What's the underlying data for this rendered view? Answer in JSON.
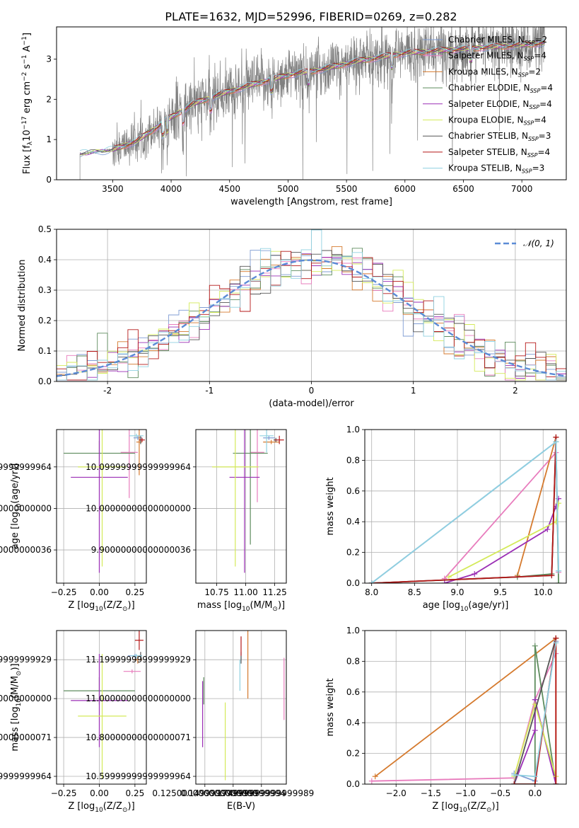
{
  "figure": {
    "title": "PLATE=1632, MJD=52996, FIBERID=0269, z=0.282"
  },
  "models": [
    {
      "label": "Chabrier MILES, N",
      "n": "=2",
      "color": "#7f9cd3"
    },
    {
      "label": "Salpeter MILES, N",
      "n": "=4",
      "color": "#e87cbd"
    },
    {
      "label": "Kroupa MILES, N",
      "n": "=2",
      "color": "#d57a2e"
    },
    {
      "label": "Chabrier ELODIE, N",
      "n": "=4",
      "color": "#5e8c5e"
    },
    {
      "label": "Salpeter ELODIE, N",
      "n": "=4",
      "color": "#9b2fb5"
    },
    {
      "label": "Kroupa ELODIE, N",
      "n": "=4",
      "color": "#d4ea5a"
    },
    {
      "label": "Chabrier STELIB, N",
      "n": "=3",
      "color": "#555555"
    },
    {
      "label": "Salpeter STELIB, N",
      "n": "=4",
      "color": "#b51818"
    },
    {
      "label": "Kroupa STELIB, N",
      "n": "=3",
      "color": "#8fd0e0"
    }
  ],
  "legend_subscript": "SSP",
  "chart_data": [
    {
      "type": "line",
      "title": "PLATE=1632, MJD=52996, FIBERID=0269, z=0.282",
      "xlabel": "wavelength [Angstrom, rest frame]",
      "ylabel": "Flux [f",
      "ylabel_parts": {
        "lambda": "λ",
        "ten": "10",
        "exp1": "−17",
        "mid": " erg cm",
        "exp2": "−2",
        "mid2": " s",
        "exp3": "−1",
        "end": " A",
        "exp4": "−1",
        "close": "]"
      },
      "xlim": [
        3020,
        7380
      ],
      "ylim": [
        0,
        3.8
      ],
      "xticks": [
        3500,
        4000,
        4500,
        5000,
        5500,
        6000,
        6500,
        7000
      ],
      "yticks": [
        0,
        1,
        2,
        3
      ],
      "x_start": 3220,
      "continuum_anchors": [
        [
          3220,
          0.65
        ],
        [
          3400,
          0.7
        ],
        [
          3500,
          0.75
        ],
        [
          3700,
          0.95
        ],
        [
          3900,
          1.35
        ],
        [
          4000,
          1.55
        ],
        [
          4200,
          1.9
        ],
        [
          4500,
          2.2
        ],
        [
          4800,
          2.45
        ],
        [
          5000,
          2.6
        ],
        [
          5300,
          2.75
        ],
        [
          5600,
          2.95
        ],
        [
          6000,
          3.15
        ],
        [
          6500,
          3.25
        ],
        [
          7000,
          3.35
        ],
        [
          7200,
          3.4
        ]
      ],
      "absorption_lines": [
        3933,
        3968,
        4102,
        4340,
        4861,
        5175,
        5890,
        6563
      ],
      "grid": false,
      "legend": "top-right"
    },
    {
      "type": "area",
      "xlabel": "(data-model)/error",
      "ylabel": "Normed distribution",
      "xlim": [
        -2.5,
        2.5
      ],
      "ylim": [
        0,
        0.5
      ],
      "xticks": [
        -2,
        -1,
        0,
        1,
        2
      ],
      "yticks": [
        0.0,
        0.1,
        0.2,
        0.3,
        0.4,
        0.5
      ],
      "bin_width": 0.1,
      "reference_curve": {
        "name": "𝒩(0, 1)",
        "mean": 0,
        "sigma": 1,
        "style": "dashed",
        "color": "#5b8bd6"
      },
      "grid": true,
      "legend": "top-right"
    },
    {
      "type": "scatter",
      "xlabel": "Z [log",
      "xlabel_parts": {
        "sub": "10",
        "tail": "(Z/Z",
        "sun": "⊙",
        "close": ")]"
      },
      "ylabel": "age  [log",
      "ylabel_parts": {
        "sub": "10",
        "tail": "(age/yr)]"
      },
      "xlim": [
        -0.3,
        0.33
      ],
      "ylim": [
        9.82,
        10.19
      ],
      "xticks": [
        -0.25,
        0.0,
        0.25
      ],
      "yticks": [
        9.9,
        10.0,
        10.1
      ],
      "grid": true,
      "points": [
        {
          "model": 0,
          "x": 0.27,
          "y": 10.17,
          "xerr": 0.03,
          "yerr": 0.005
        },
        {
          "model": 1,
          "x": 0.21,
          "y": 10.135,
          "xerr": 0.06,
          "yerr": 0.11
        },
        {
          "model": 2,
          "x": 0.28,
          "y": 10.16,
          "xerr": 0.02,
          "yerr": 0.08
        },
        {
          "model": 3,
          "x": 0.0,
          "y": 10.133,
          "xerr": 0.25,
          "yerr": 0.03
        },
        {
          "model": 4,
          "x": 0.0,
          "y": 10.075,
          "xerr": 0.2,
          "yerr": 0.23
        },
        {
          "model": 5,
          "x": 0.02,
          "y": 10.1,
          "xerr": 0.17,
          "yerr": 0.24
        },
        {
          "model": 6,
          "x": 0.29,
          "y": 10.165,
          "xerr": 0.01,
          "yerr": 0.01
        },
        {
          "model": 7,
          "x": 0.3,
          "y": 10.165,
          "xerr": 0.02,
          "yerr": 0.005
        },
        {
          "model": 8,
          "x": 0.26,
          "y": 10.175,
          "xerr": 0.05,
          "yerr": 0.005
        }
      ]
    },
    {
      "type": "scatter",
      "xlabel": "mass [log",
      "xlabel_parts": {
        "sub": "10",
        "tail": "(M/M",
        "sun": "⊙",
        "close": ")]"
      },
      "ylabel": "",
      "xlim": [
        10.57,
        11.35
      ],
      "ylim": [
        9.82,
        10.19
      ],
      "xticks": [
        10.75,
        11.0,
        11.25
      ],
      "yticks": [
        9.9,
        10.0,
        10.1
      ],
      "grid": true,
      "points": [
        {
          "model": 0,
          "x": 11.2,
          "y": 10.17,
          "xerr": 0.05,
          "yerr": 0.005
        },
        {
          "model": 1,
          "x": 11.1,
          "y": 10.135,
          "xerr": 0.06,
          "yerr": 0.12
        },
        {
          "model": 2,
          "x": 11.22,
          "y": 10.16,
          "xerr": 0.07,
          "yerr": 0.005
        },
        {
          "model": 3,
          "x": 11.04,
          "y": 10.133,
          "xerr": 0.15,
          "yerr": 0.22
        },
        {
          "model": 4,
          "x": 10.99,
          "y": 10.075,
          "xerr": 0.13,
          "yerr": 0.23
        },
        {
          "model": 5,
          "x": 10.91,
          "y": 10.1,
          "xerr": 0.2,
          "yerr": 0.24
        },
        {
          "model": 6,
          "x": 11.26,
          "y": 10.165,
          "xerr": 0.02,
          "yerr": 0.005
        },
        {
          "model": 7,
          "x": 11.29,
          "y": 10.165,
          "xerr": 0.04,
          "yerr": 0.01
        },
        {
          "model": 8,
          "x": 11.18,
          "y": 10.175,
          "xerr": 0.06,
          "yerr": 0.04
        }
      ]
    },
    {
      "type": "line",
      "xlabel": "age  [log",
      "xlabel_parts": {
        "sub": "10",
        "tail": "(age/yr)]"
      },
      "ylabel": "mass weight",
      "xlim": [
        7.92,
        10.27
      ],
      "ylim": [
        0,
        1.0
      ],
      "xticks": [
        8.0,
        8.5,
        9.0,
        9.5,
        10.0
      ],
      "yticks": [
        0.0,
        0.2,
        0.4,
        0.6,
        0.8,
        1.0
      ],
      "grid": true,
      "series": [
        {
          "model": 0,
          "x": [
            8.0,
            10.15,
            10.18
          ],
          "y": [
            0.0,
            0.92,
            0.08
          ]
        },
        {
          "model": 1,
          "x": [
            8.85,
            10.15,
            10.18
          ],
          "y": [
            0.03,
            0.85,
            0.07
          ]
        },
        {
          "model": 2,
          "x": [
            9.7,
            10.15
          ],
          "y": [
            0.05,
            0.95
          ]
        },
        {
          "model": 3,
          "x": [
            8.0,
            9.7,
            10.1,
            10.15,
            10.18
          ],
          "y": [
            0.0,
            0.04,
            0.06,
            0.92,
            0.0
          ]
        },
        {
          "model": 4,
          "x": [
            8.85,
            9.2,
            10.05,
            10.15,
            10.18
          ],
          "y": [
            0.0,
            0.06,
            0.35,
            0.5,
            0.55
          ]
        },
        {
          "model": 5,
          "x": [
            8.9,
            10.15,
            10.18
          ],
          "y": [
            0.04,
            0.4,
            0.52
          ]
        },
        {
          "model": 6,
          "x": [
            8.0,
            10.1,
            10.15
          ],
          "y": [
            0.0,
            0.05,
            0.95
          ]
        },
        {
          "model": 7,
          "x": [
            8.0,
            10.1,
            10.15
          ],
          "y": [
            0.0,
            0.05,
            0.95
          ]
        },
        {
          "model": 8,
          "x": [
            8.0,
            10.15,
            10.18
          ],
          "y": [
            0.0,
            0.92,
            0.08
          ]
        }
      ]
    },
    {
      "type": "scatter",
      "xlabel": "Z [log",
      "xlabel_parts": {
        "sub": "10",
        "tail": "(Z/Z",
        "sun": "⊙",
        "close": ")]"
      },
      "ylabel": "mass [log",
      "ylabel_parts": {
        "sub": "10",
        "tail": "(M/M",
        "sun": "⊙",
        "close": ")]"
      },
      "xlim": [
        -0.3,
        0.33
      ],
      "ylim": [
        10.56,
        11.35
      ],
      "xticks": [
        -0.25,
        0.0,
        0.25
      ],
      "yticks": [
        10.6,
        10.8,
        11.0,
        11.2
      ],
      "grid": true,
      "points": [
        {
          "model": 0,
          "x": 0.25,
          "y": 11.22,
          "xerr": 0.05,
          "yerr": 0.01
        },
        {
          "model": 1,
          "x": 0.23,
          "y": 11.14,
          "xerr": 0.06,
          "yerr": 0.01
        },
        {
          "model": 2,
          "x": 0.27,
          "y": 11.2,
          "xerr": 0.03,
          "yerr": 0.02
        },
        {
          "model": 3,
          "x": 0.0,
          "y": 11.04,
          "xerr": 0.25,
          "yerr": 0.07
        },
        {
          "model": 4,
          "x": 0.0,
          "y": 10.99,
          "xerr": 0.2,
          "yerr": 0.24
        },
        {
          "model": 5,
          "x": 0.02,
          "y": 10.91,
          "xerr": 0.17,
          "yerr": 0.32
        },
        {
          "model": 6,
          "x": 0.29,
          "y": 11.22,
          "xerr": 0.01,
          "yerr": 0.02
        },
        {
          "model": 7,
          "x": 0.28,
          "y": 11.3,
          "xerr": 0.03,
          "yerr": 0.05
        },
        {
          "model": 8,
          "x": 0.26,
          "y": 11.22,
          "xerr": 0.04,
          "yerr": 0.01
        }
      ]
    },
    {
      "type": "scatter",
      "xlabel": "E(B-V)",
      "ylabel": "",
      "xlim": [
        0.117,
        0.197
      ],
      "ylim": [
        10.56,
        11.35
      ],
      "xticks": [
        0.125,
        0.15,
        0.175
      ],
      "yticks": [
        10.6,
        10.8,
        11.0,
        11.2
      ],
      "grid": true,
      "points": [
        {
          "model": 0,
          "x": 0.157,
          "y": 11.22,
          "xerr": 0.0,
          "yerr": 0.02
        },
        {
          "model": 1,
          "x": 0.195,
          "y": 11.05,
          "xerr": 0.0,
          "yerr": 0.16
        },
        {
          "model": 2,
          "x": 0.163,
          "y": 11.2,
          "xerr": 0.0,
          "yerr": 0.2
        },
        {
          "model": 3,
          "x": 0.124,
          "y": 11.04,
          "xerr": 0.0,
          "yerr": 0.07
        },
        {
          "model": 4,
          "x": 0.123,
          "y": 10.92,
          "xerr": 0.0,
          "yerr": 0.17
        },
        {
          "model": 5,
          "x": 0.143,
          "y": 10.78,
          "xerr": 0.0,
          "yerr": 0.2
        },
        {
          "model": 6,
          "x": 0.157,
          "y": 11.2,
          "xerr": 0.0,
          "yerr": 0.02
        },
        {
          "model": 7,
          "x": 0.157,
          "y": 11.27,
          "xerr": 0.0,
          "yerr": 0.05
        },
        {
          "model": 8,
          "x": 0.156,
          "y": 11.12,
          "xerr": 0.0,
          "yerr": 0.08
        }
      ]
    },
    {
      "type": "line",
      "xlabel": "Z [log",
      "xlabel_parts": {
        "sub": "10",
        "tail": "(Z/Z",
        "sun": "⊙",
        "close": ")]"
      },
      "ylabel": "mass weight",
      "xlim": [
        -2.45,
        0.45
      ],
      "ylim": [
        0,
        1.0
      ],
      "xticks": [
        -2.0,
        -1.5,
        -1.0,
        -0.5,
        0.0
      ],
      "yticks": [
        0.0,
        0.2,
        0.4,
        0.6,
        0.8,
        1.0
      ],
      "grid": true,
      "series": [
        {
          "model": 0,
          "x": [
            -0.3,
            0.0,
            0.3
          ],
          "y": [
            0.07,
            0.02,
            0.93
          ]
        },
        {
          "model": 1,
          "x": [
            -2.35,
            -0.3,
            0.0,
            0.3
          ],
          "y": [
            0.02,
            0.04,
            0.55,
            0.85
          ]
        },
        {
          "model": 2,
          "x": [
            -2.3,
            0.3,
            0.3
          ],
          "y": [
            0.05,
            0.95,
            0.0
          ]
        },
        {
          "model": 3,
          "x": [
            -0.3,
            0.0,
            0.0,
            0.3
          ],
          "y": [
            0.0,
            0.0,
            0.9,
            0.0
          ]
        },
        {
          "model": 4,
          "x": [
            -0.3,
            0.0,
            0.0,
            0.3
          ],
          "y": [
            0.0,
            0.35,
            0.55,
            0.0
          ]
        },
        {
          "model": 5,
          "x": [
            -0.3,
            0.0,
            0.3
          ],
          "y": [
            0.05,
            0.52,
            0.05
          ]
        },
        {
          "model": 6,
          "x": [
            -0.3,
            0.3
          ],
          "y": [
            0.0,
            0.95
          ]
        },
        {
          "model": 7,
          "x": [
            -0.3,
            0.0,
            0.3,
            0.3
          ],
          "y": [
            0.0,
            0.0,
            0.95,
            0.0
          ]
        },
        {
          "model": 8,
          "x": [
            -0.3,
            0.0,
            0.3
          ],
          "y": [
            0.06,
            0.05,
            0.92
          ]
        }
      ]
    }
  ]
}
